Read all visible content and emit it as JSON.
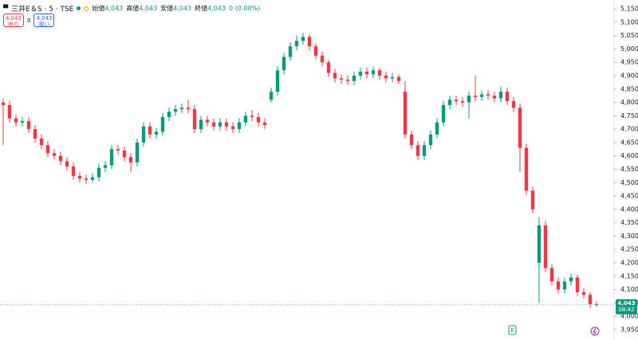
{
  "header": {
    "symbol": "三井E＆S · 5 · TSE",
    "open_label": "始値",
    "open": "4,043",
    "high_label": "高値",
    "high": "4,043",
    "low_label": "安値",
    "low": "4,043",
    "close_label": "終値",
    "close": "4,043",
    "change": "0 (0.00%)",
    "sell_price": "4,043",
    "sell_label": "売り",
    "spread": "0",
    "buy_price": "4,043",
    "buy_label": "買い"
  },
  "chart_data": {
    "type": "candlestick",
    "open": [
      4800,
      4790,
      4740,
      4725,
      4730,
      4700,
      4665,
      4640,
      4610,
      4600,
      4580,
      4560,
      4525,
      4515,
      4510,
      4520,
      4555,
      4565,
      4625,
      4620,
      4595,
      4575,
      4650,
      4710,
      4680,
      4690,
      4745,
      4765,
      4775,
      4780,
      4775,
      4700,
      4735,
      4725,
      4710,
      4725,
      4710,
      4700,
      4725,
      4750,
      4745,
      4725,
      4810,
      4840,
      4920,
      4970,
      5010,
      5030,
      5045,
      5010,
      4975,
      4950,
      4910,
      4890,
      4885,
      4880,
      4900,
      4915,
      4905,
      4920,
      4900,
      4890,
      4895,
      4840,
      4680,
      4640,
      4600,
      4640,
      4680,
      4725,
      4790,
      4810,
      4805,
      4800,
      4825,
      4820,
      4830,
      4825,
      4815,
      4840,
      4805,
      4780,
      4630,
      4470,
      4200,
      4340,
      4180,
      4130,
      4100,
      4130,
      4145,
      4090,
      4080,
      4045
    ],
    "high": [
      4815,
      4805,
      4755,
      4745,
      4745,
      4715,
      4680,
      4655,
      4625,
      4615,
      4595,
      4575,
      4540,
      4530,
      4535,
      4570,
      4580,
      4640,
      4640,
      4635,
      4610,
      4665,
      4725,
      4725,
      4705,
      4760,
      4780,
      4790,
      4795,
      4810,
      4790,
      4750,
      4750,
      4740,
      4740,
      4740,
      4725,
      4740,
      4765,
      4770,
      4760,
      4740,
      4855,
      4935,
      4985,
      5025,
      5050,
      5060,
      5055,
      5020,
      4990,
      4960,
      4925,
      4905,
      4900,
      4915,
      4930,
      4930,
      4935,
      4930,
      4915,
      4910,
      4905,
      4880,
      4695,
      4655,
      4655,
      4695,
      4740,
      4805,
      4825,
      4825,
      4820,
      4840,
      4900,
      4845,
      4845,
      4840,
      4860,
      4855,
      4820,
      4795,
      4645,
      4485,
      4370,
      4355,
      4195,
      4145,
      4145,
      4160,
      4155,
      4105,
      4090,
      4055
    ],
    "low": [
      4640,
      4725,
      4710,
      4710,
      4685,
      4650,
      4625,
      4595,
      4585,
      4565,
      4545,
      4510,
      4500,
      4495,
      4500,
      4505,
      4540,
      4550,
      4605,
      4580,
      4540,
      4560,
      4635,
      4665,
      4665,
      4675,
      4730,
      4750,
      4760,
      4760,
      4685,
      4685,
      4710,
      4695,
      4695,
      4695,
      4685,
      4685,
      4710,
      4730,
      4710,
      4700,
      4800,
      4825,
      4905,
      4955,
      4995,
      5015,
      4995,
      4960,
      4935,
      4895,
      4875,
      4870,
      4865,
      4865,
      4885,
      4890,
      4890,
      4885,
      4875,
      4875,
      4870,
      4665,
      4625,
      4585,
      4585,
      4625,
      4665,
      4710,
      4775,
      4790,
      4785,
      4740,
      4805,
      4805,
      4810,
      4800,
      4800,
      4790,
      4765,
      4540,
      4455,
      4385,
      4050,
      4165,
      4115,
      4085,
      4085,
      4115,
      4075,
      4065,
      4030,
      4035
    ],
    "close": [
      4790,
      4740,
      4725,
      4730,
      4700,
      4665,
      4640,
      4610,
      4600,
      4580,
      4560,
      4525,
      4515,
      4510,
      4520,
      4555,
      4565,
      4625,
      4620,
      4595,
      4575,
      4650,
      4710,
      4680,
      4690,
      4745,
      4765,
      4775,
      4780,
      4775,
      4700,
      4735,
      4725,
      4710,
      4725,
      4710,
      4700,
      4725,
      4750,
      4745,
      4725,
      4715,
      4840,
      4920,
      4970,
      5010,
      5030,
      5045,
      5010,
      4975,
      4950,
      4910,
      4890,
      4885,
      4880,
      4900,
      4915,
      4905,
      4920,
      4900,
      4890,
      4895,
      4880,
      4680,
      4640,
      4600,
      4640,
      4680,
      4725,
      4790,
      4810,
      4805,
      4800,
      4825,
      4820,
      4830,
      4825,
      4815,
      4840,
      4805,
      4780,
      4630,
      4470,
      4400,
      4340,
      4180,
      4130,
      4100,
      4130,
      4145,
      4090,
      4080,
      4045,
      4043
    ],
    "up_color": "#089981",
    "down_color": "#f23645",
    "ylim": [
      3911,
      5183
    ],
    "yticks": [
      {
        "value": 3950,
        "label": "3,950"
      },
      {
        "value": 4000,
        "label": "4,000"
      },
      {
        "value": 4050,
        "label": "4,050"
      },
      {
        "value": 4100,
        "label": "4,100"
      },
      {
        "value": 4150,
        "label": "4,150"
      },
      {
        "value": 4200,
        "label": "4,200"
      },
      {
        "value": 4250,
        "label": "4,250"
      },
      {
        "value": 4300,
        "label": "4,300"
      },
      {
        "value": 4350,
        "label": "4,350"
      },
      {
        "value": 4400,
        "label": "4,400"
      },
      {
        "value": 4450,
        "label": "4,450"
      },
      {
        "value": 4500,
        "label": "4,500"
      },
      {
        "value": 4550,
        "label": "4,550"
      },
      {
        "value": 4600,
        "label": "4,600"
      },
      {
        "value": 4650,
        "label": "4,650"
      },
      {
        "value": 4700,
        "label": "4,700"
      },
      {
        "value": 4750,
        "label": "4,750"
      },
      {
        "value": 4800,
        "label": "4,800"
      },
      {
        "value": 4850,
        "label": "4,850"
      },
      {
        "value": 4900,
        "label": "4,900"
      },
      {
        "value": 4950,
        "label": "4,950"
      },
      {
        "value": 5000,
        "label": "5,000"
      },
      {
        "value": 5050,
        "label": "5,050"
      },
      {
        "value": 5100,
        "label": "5,100"
      },
      {
        "value": 5150,
        "label": "5,150"
      }
    ],
    "last_price": {
      "value": 4043,
      "label": "4,043"
    },
    "countdown": "08:42"
  }
}
